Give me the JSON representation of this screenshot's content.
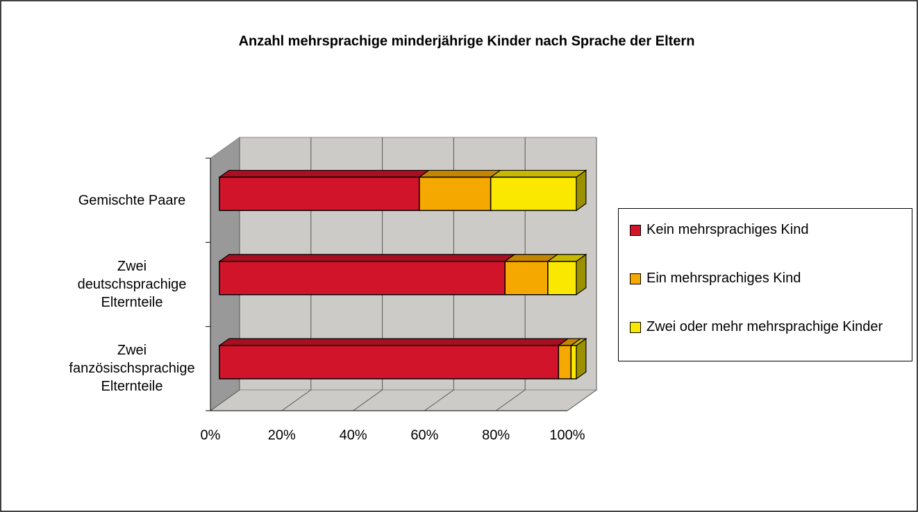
{
  "chart_data": {
    "type": "bar3d_stacked_horizontal",
    "title": "Anzahl mehrsprachige minderjährige Kinder nach Sprache der Eltern",
    "categories": [
      "Gemischte Paare",
      "Zwei deutschsprachige Elternteile",
      "Zwei fanzösischsprachige Elternteile"
    ],
    "series": [
      {
        "name": "Kein mehrsprachiges Kind",
        "color": "#d2142a",
        "values": [
          56,
          80,
          95
        ]
      },
      {
        "name": "Ein mehrsprachiges Kind",
        "color": "#f5a800",
        "values": [
          20,
          12,
          3.5
        ]
      },
      {
        "name": "Zwei oder mehr mehrsprachige Kinder",
        "color": "#fbe800",
        "values": [
          24,
          8,
          1.5
        ]
      }
    ],
    "xlim": [
      0,
      100
    ],
    "xticks": [
      {
        "value": 0,
        "label": "0%"
      },
      {
        "value": 20,
        "label": "20%"
      },
      {
        "value": 40,
        "label": "40%"
      },
      {
        "value": 60,
        "label": "60%"
      },
      {
        "value": 80,
        "label": "80%"
      },
      {
        "value": 100,
        "label": "100%"
      }
    ],
    "grid": true,
    "legend": "right"
  }
}
